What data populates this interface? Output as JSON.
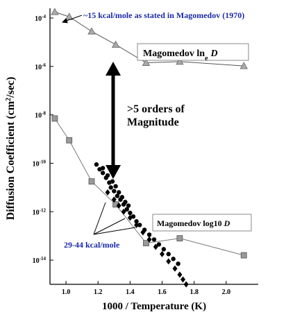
{
  "chart_data": {
    "type": "scatter",
    "xlabel": "1000 / Temperature (K)",
    "ylabel_main": "Diffusion Coefficient (cm",
    "ylabel_sup": "2",
    "ylabel_tail": "/sec)",
    "xlim": [
      0.9,
      2.2
    ],
    "ylim_log10": [
      -15,
      -3.6
    ],
    "log_y": true,
    "x_ticks": [
      {
        "value": 1.0,
        "label": "1.0"
      },
      {
        "value": 1.2,
        "label": "1.2"
      },
      {
        "value": 1.4,
        "label": "1.4"
      },
      {
        "value": 1.6,
        "label": "1.6"
      },
      {
        "value": 1.8,
        "label": "1.8"
      },
      {
        "value": 2.0,
        "label": "2.0"
      }
    ],
    "y_ticks": [
      {
        "exp": -4,
        "base": "10",
        "sup": "-4"
      },
      {
        "exp": -6,
        "base": "10",
        "sup": "-6"
      },
      {
        "exp": -8,
        "base": "10",
        "sup": "-8"
      },
      {
        "exp": -10,
        "base": "10",
        "sup": "-10"
      },
      {
        "exp": -12,
        "base": "10",
        "sup": "-12"
      },
      {
        "exp": -14,
        "base": "10",
        "sup": "-14"
      }
    ],
    "series": [
      {
        "name": "Magomedov lnₑ D",
        "marker": "triangle",
        "color": "#aaaaaa",
        "points": [
          [
            0.93,
            -3.75
          ],
          [
            1.02,
            -3.95
          ],
          [
            1.16,
            -4.55
          ],
          [
            1.31,
            -5.1
          ],
          [
            1.5,
            -5.85
          ],
          [
            1.71,
            -5.8
          ],
          [
            2.11,
            -5.98
          ]
        ]
      },
      {
        "name": "Magomedov log10 D",
        "marker": "square",
        "color": "#999999",
        "points": [
          [
            0.93,
            -8.15
          ],
          [
            1.02,
            -9.05
          ],
          [
            1.16,
            -10.75
          ],
          [
            1.31,
            -11.7
          ],
          [
            1.5,
            -13.3
          ],
          [
            1.71,
            -13.1
          ],
          [
            2.11,
            -13.8
          ]
        ]
      },
      {
        "marker": "circle",
        "color": "#000000",
        "points": [
          [
            1.19,
            -10.05
          ],
          [
            1.21,
            -10.25
          ],
          [
            1.23,
            -10.4
          ],
          [
            1.25,
            -10.6
          ],
          [
            1.27,
            -10.8
          ],
          [
            1.28,
            -11.0
          ],
          [
            1.3,
            -11.15
          ],
          [
            1.32,
            -11.35
          ],
          [
            1.34,
            -11.5
          ],
          [
            1.36,
            -11.7
          ],
          [
            1.38,
            -11.9
          ],
          [
            1.4,
            -12.05
          ],
          [
            1.42,
            -12.2
          ],
          [
            1.44,
            -12.4
          ],
          [
            1.46,
            -12.55
          ],
          [
            1.49,
            -12.75
          ],
          [
            1.52,
            -12.95
          ],
          [
            1.55,
            -13.15
          ],
          [
            1.58,
            -13.35
          ],
          [
            1.61,
            -13.55
          ],
          [
            1.64,
            -13.75
          ],
          [
            1.67,
            -13.95
          ],
          [
            1.7,
            -14.15
          ],
          [
            1.23,
            -10.2
          ],
          [
            1.26,
            -10.5
          ],
          [
            1.29,
            -10.75
          ],
          [
            1.31,
            -10.95
          ],
          [
            1.33,
            -11.2
          ],
          [
            1.35,
            -11.4
          ],
          [
            1.37,
            -11.6
          ],
          [
            1.39,
            -11.75
          ]
        ]
      },
      {
        "marker": "diamond",
        "color": "#000000",
        "points": [
          [
            1.26,
            -11.2
          ],
          [
            1.3,
            -11.5
          ],
          [
            1.33,
            -11.75
          ],
          [
            1.36,
            -12.0
          ],
          [
            1.4,
            -12.25
          ],
          [
            1.44,
            -12.55
          ],
          [
            1.48,
            -12.85
          ],
          [
            1.52,
            -13.15
          ],
          [
            1.56,
            -13.45
          ],
          [
            1.6,
            -13.75
          ],
          [
            1.64,
            -14.05
          ],
          [
            1.68,
            -14.35
          ],
          [
            1.71,
            -14.6
          ],
          [
            1.73,
            -14.8
          ],
          [
            1.75,
            -15.0
          ]
        ]
      }
    ],
    "annotations": {
      "top_note": "~15 kcal/mole as stated in Magomedov (1970)",
      "box_upper_prefix": "Magomedov ln",
      "box_upper_sub": "e",
      "box_upper_var": "D",
      "orders_line1": ">5 orders of",
      "orders_line2": "Magnitude",
      "box_lower_prefix": "Magomedov log10",
      "box_lower_var": "D",
      "kcal_note": "29-44 kcal/mole"
    }
  }
}
